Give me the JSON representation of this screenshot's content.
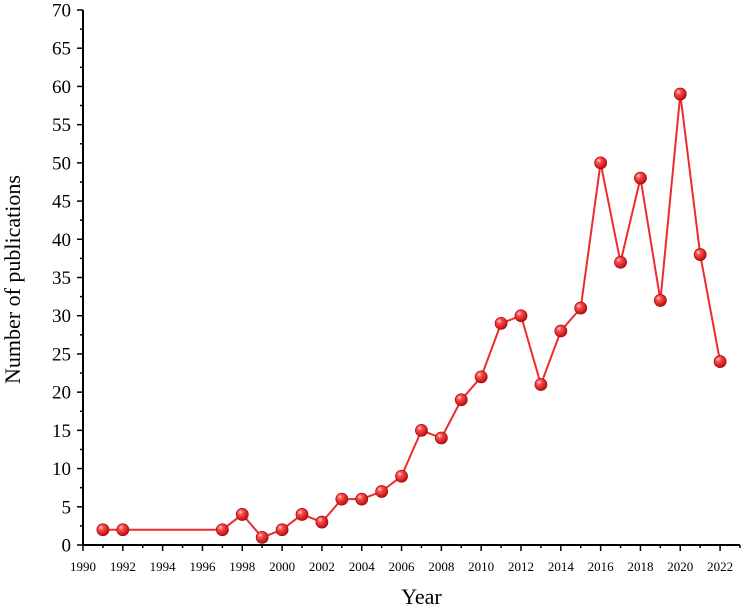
{
  "chart_data": {
    "type": "line",
    "title": "",
    "xlabel": "Year",
    "ylabel": "Number of publications",
    "xlim": [
      1990,
      2023
    ],
    "ylim": [
      0,
      70
    ],
    "x_ticks": [
      1990,
      1992,
      1994,
      1996,
      1998,
      2000,
      2002,
      2004,
      2006,
      2008,
      2010,
      2012,
      2014,
      2016,
      2018,
      2020,
      2022
    ],
    "y_ticks": [
      0,
      5,
      10,
      15,
      20,
      25,
      30,
      35,
      40,
      45,
      50,
      55,
      60,
      65,
      70
    ],
    "grid": false,
    "legend": "none",
    "series": [
      {
        "color": "#ee2b2e",
        "marker": "sphere",
        "x": [
          1991,
          1992,
          1997,
          1998,
          1999,
          2000,
          2001,
          2002,
          2003,
          2004,
          2005,
          2006,
          2007,
          2008,
          2009,
          2010,
          2011,
          2012,
          2013,
          2014,
          2015,
          2016,
          2017,
          2018,
          2019,
          2020,
          2021,
          2022
        ],
        "values": [
          2,
          2,
          2,
          4,
          1,
          2,
          4,
          3,
          6,
          6,
          7,
          9,
          15,
          14,
          19,
          22,
          29,
          30,
          21,
          28,
          31,
          50,
          37,
          48,
          32,
          59,
          38,
          24
        ]
      }
    ]
  }
}
